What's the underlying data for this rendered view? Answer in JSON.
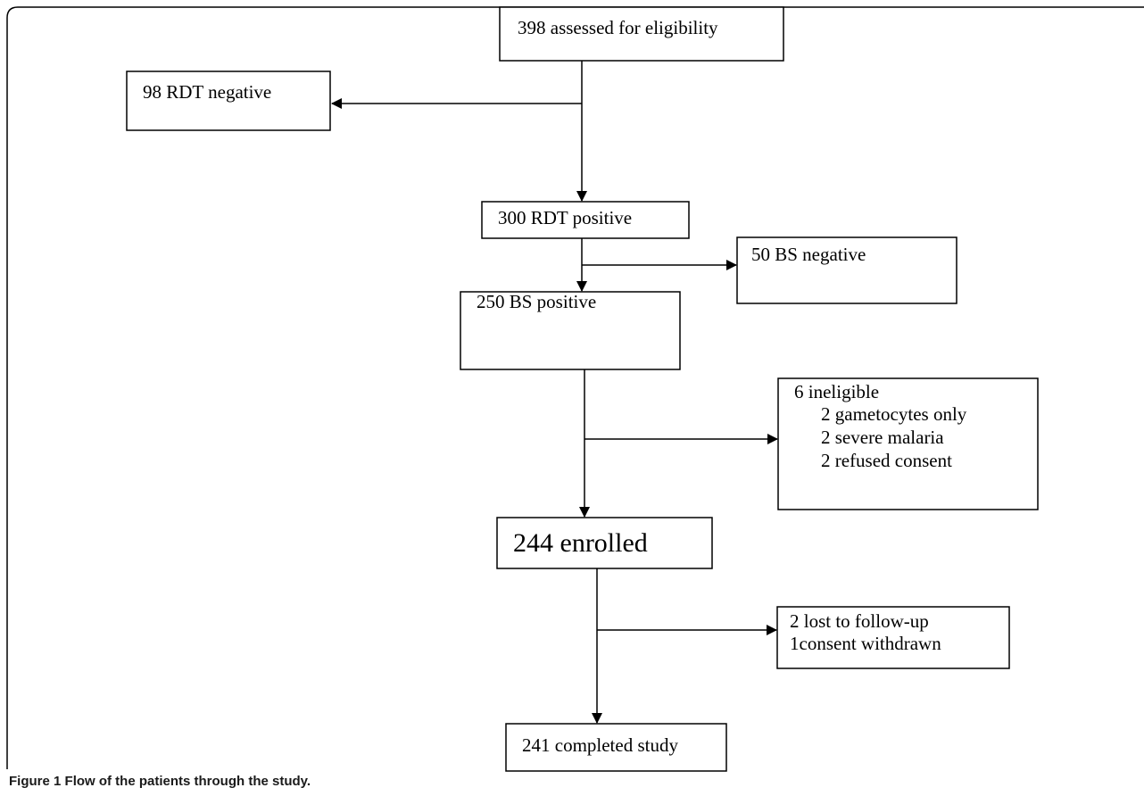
{
  "nodes": [
    {
      "label": "398 assessed for eligibility"
    },
    {
      "label": "98 RDT negative"
    },
    {
      "label": "300 RDT positive"
    },
    {
      "label": "50 BS negative"
    },
    {
      "label": "250 BS positive"
    },
    {
      "label": "6 ineligible",
      "items": [
        "2 gametocytes only",
        "2 severe malaria",
        "2 refused consent"
      ]
    },
    {
      "label": "244 enrolled"
    },
    {
      "label": "2 lost to follow-up",
      "items": [
        "1consent withdrawn"
      ]
    },
    {
      "label": "241 completed study"
    }
  ],
  "caption": {
    "label": "Figure 1",
    "text": "Flow of the patients through the study."
  }
}
